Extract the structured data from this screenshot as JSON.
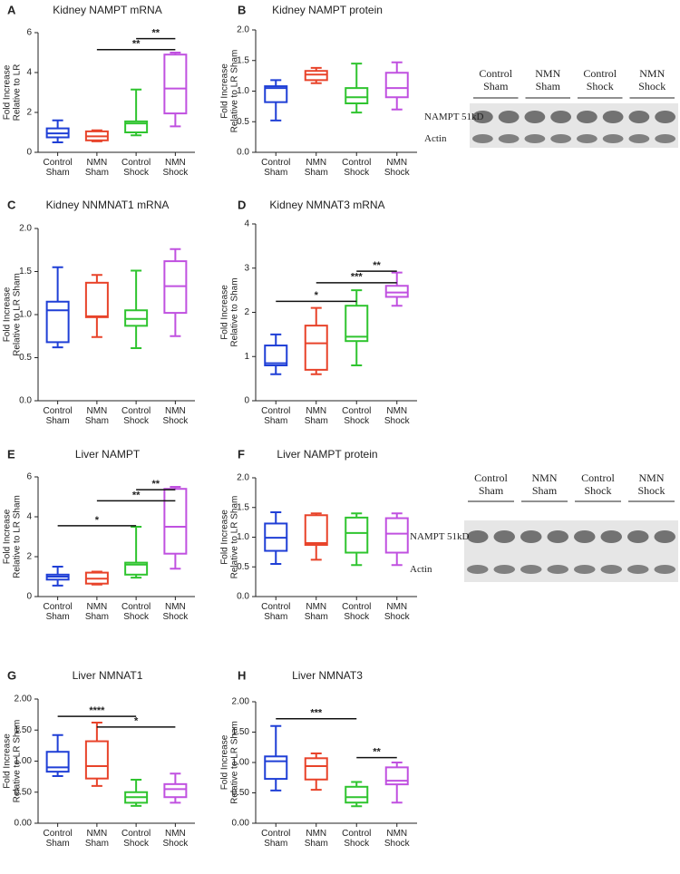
{
  "chart_data": [
    {
      "type": "box",
      "panel_label": "A",
      "title": "Kidney NAMPT mRNA",
      "ylabel": [
        "Fold Increase",
        "Relative to LR"
      ],
      "categories": [
        "Control Sham",
        "NMN Sham",
        "Control Shock",
        "NMN Shock"
      ],
      "colors": [
        "#1f3fd6",
        "#e8432a",
        "#2fc42f",
        "#c051e0"
      ],
      "ylim": [
        0,
        6
      ],
      "yticks": [
        0,
        2,
        4,
        6
      ],
      "values": [
        {
          "min": 0.5,
          "q1": 0.75,
          "median": 0.95,
          "q3": 1.2,
          "max": 1.6
        },
        {
          "min": 0.55,
          "q1": 0.6,
          "median": 0.8,
          "q3": 1.05,
          "max": 1.1
        },
        {
          "min": 0.85,
          "q1": 1.0,
          "median": 1.45,
          "q3": 1.55,
          "max": 3.15
        },
        {
          "min": 1.3,
          "q1": 1.95,
          "median": 3.2,
          "q3": 4.9,
          "max": 5.0
        }
      ],
      "annotations": [
        {
          "label": "**",
          "y": 5.7,
          "span": [
            2,
            3
          ]
        },
        {
          "label": "**",
          "y": 5.15,
          "span": [
            1,
            3
          ]
        }
      ]
    },
    {
      "type": "box",
      "panel_label": "B",
      "title": "Kidney NAMPT protein",
      "ylabel": [
        "Fold Increase",
        "Relative to LR Sham"
      ],
      "categories": [
        "Control Sham",
        "NMN Sham",
        "Control Shock",
        "NMN Shock"
      ],
      "colors": [
        "#1f3fd6",
        "#e8432a",
        "#2fc42f",
        "#c051e0"
      ],
      "ylim": [
        0,
        2
      ],
      "yticks": [
        {
          "value": 0,
          "label": "0.0"
        },
        {
          "value": 0.5,
          "label": "0.5"
        },
        {
          "value": 1,
          "label": "1.0"
        },
        {
          "value": 1.5,
          "label": "1.5"
        },
        {
          "value": 2,
          "label": "2.0"
        }
      ],
      "values": [
        {
          "min": 0.52,
          "q1": 0.82,
          "median": 1.05,
          "q3": 1.08,
          "max": 1.18
        },
        {
          "min": 1.13,
          "q1": 1.18,
          "median": 1.27,
          "q3": 1.33,
          "max": 1.38
        },
        {
          "min": 0.65,
          "q1": 0.8,
          "median": 0.9,
          "q3": 1.05,
          "max": 1.45
        },
        {
          "min": 0.7,
          "q1": 0.9,
          "median": 1.05,
          "q3": 1.3,
          "max": 1.47
        }
      ],
      "annotations": []
    },
    {
      "type": "box",
      "panel_label": "C",
      "title": "Kidney NNMNAT1 mRNA",
      "ylabel": [
        "Fold Increase",
        "Relative to LR Sham"
      ],
      "categories": [
        "Control Sham",
        "NMN Sham",
        "Control Shock",
        "NMN Shock"
      ],
      "colors": [
        "#1f3fd6",
        "#e8432a",
        "#2fc42f",
        "#c051e0"
      ],
      "ylim": [
        0,
        2
      ],
      "yticks": [
        {
          "value": 0,
          "label": "0.0"
        },
        {
          "value": 0.5,
          "label": "0.5"
        },
        {
          "value": 1,
          "label": "1.0"
        },
        {
          "value": 1.5,
          "label": "1.5"
        },
        {
          "value": 2,
          "label": "2.0"
        }
      ],
      "values": [
        {
          "min": 0.62,
          "q1": 0.68,
          "median": 1.05,
          "q3": 1.15,
          "max": 1.55
        },
        {
          "min": 0.74,
          "q1": 0.97,
          "median": 0.98,
          "q3": 1.37,
          "max": 1.46
        },
        {
          "min": 0.61,
          "q1": 0.87,
          "median": 0.95,
          "q3": 1.05,
          "max": 1.51
        },
        {
          "min": 0.75,
          "q1": 1.02,
          "median": 1.33,
          "q3": 1.62,
          "max": 1.76
        }
      ],
      "annotations": []
    },
    {
      "type": "box",
      "panel_label": "D",
      "title": "Kidney NMNAT3 mRNA",
      "ylabel": [
        "Fold Increase",
        "Relative to Sham"
      ],
      "categories": [
        "Control Sham",
        "NMN Sham",
        "Control Shock",
        "NMN Shock"
      ],
      "colors": [
        "#1f3fd6",
        "#e8432a",
        "#2fc42f",
        "#c051e0"
      ],
      "ylim": [
        0,
        4
      ],
      "yticks": [
        0,
        1,
        2,
        3,
        4
      ],
      "values": [
        {
          "min": 0.6,
          "q1": 0.8,
          "median": 0.85,
          "q3": 1.25,
          "max": 1.5
        },
        {
          "min": 0.6,
          "q1": 0.7,
          "median": 1.3,
          "q3": 1.7,
          "max": 2.1
        },
        {
          "min": 0.8,
          "q1": 1.35,
          "median": 1.45,
          "q3": 2.15,
          "max": 2.5
        },
        {
          "min": 2.15,
          "q1": 2.35,
          "median": 2.45,
          "q3": 2.6,
          "max": 2.9
        }
      ],
      "annotations": [
        {
          "label": "*",
          "y": 2.25,
          "span": [
            0,
            2
          ]
        },
        {
          "label": "***",
          "y": 2.67,
          "span": [
            1,
            3
          ]
        },
        {
          "label": "**",
          "y": 2.93,
          "span": [
            2,
            3
          ]
        }
      ]
    },
    {
      "type": "box",
      "panel_label": "E",
      "title": "Liver NAMPT",
      "ylabel": [
        "Fold Increase",
        "Relative to LR Sham"
      ],
      "categories": [
        "Control Sham",
        "NMN Sham",
        "Control Shock",
        "NMN Shock"
      ],
      "colors": [
        "#1f3fd6",
        "#e8432a",
        "#2fc42f",
        "#c051e0"
      ],
      "ylim": [
        0,
        6
      ],
      "yticks": [
        0,
        2,
        4,
        6
      ],
      "values": [
        {
          "min": 0.55,
          "q1": 0.85,
          "median": 1.0,
          "q3": 1.1,
          "max": 1.5
        },
        {
          "min": 0.6,
          "q1": 0.65,
          "median": 0.9,
          "q3": 1.2,
          "max": 1.25
        },
        {
          "min": 0.95,
          "q1": 1.1,
          "median": 1.6,
          "q3": 1.7,
          "max": 3.5
        },
        {
          "min": 1.4,
          "q1": 2.15,
          "median": 3.5,
          "q3": 5.4,
          "max": 5.5
        }
      ],
      "annotations": [
        {
          "label": "*",
          "y": 3.55,
          "span": [
            0,
            2
          ]
        },
        {
          "label": "**",
          "y": 4.8,
          "span": [
            1,
            3
          ]
        },
        {
          "label": "**",
          "y": 5.36,
          "span": [
            2,
            3
          ]
        }
      ]
    },
    {
      "type": "box",
      "panel_label": "F",
      "title": "Liver NAMPT protein",
      "ylabel": [
        "Fold Increase",
        "Relative to LR Sham"
      ],
      "categories": [
        "Control Sham",
        "NMN Sham",
        "Control Shock",
        "NMN Shock"
      ],
      "colors": [
        "#1f3fd6",
        "#e8432a",
        "#2fc42f",
        "#c051e0"
      ],
      "ylim": [
        0,
        2
      ],
      "yticks": [
        {
          "value": 0,
          "label": "0.0"
        },
        {
          "value": 0.5,
          "label": "0.5"
        },
        {
          "value": 1,
          "label": "1.0"
        },
        {
          "value": 1.5,
          "label": "1.5"
        },
        {
          "value": 2,
          "label": "2.0"
        }
      ],
      "values": [
        {
          "min": 0.55,
          "q1": 0.77,
          "median": 0.99,
          "q3": 1.23,
          "max": 1.42
        },
        {
          "min": 0.62,
          "q1": 0.87,
          "median": 0.9,
          "q3": 1.37,
          "max": 1.4
        },
        {
          "min": 0.53,
          "q1": 0.74,
          "median": 1.07,
          "q3": 1.33,
          "max": 1.4
        },
        {
          "min": 0.53,
          "q1": 0.74,
          "median": 1.06,
          "q3": 1.32,
          "max": 1.4
        }
      ],
      "annotations": []
    },
    {
      "type": "box",
      "panel_label": "G",
      "title": "Liver NMNAT1",
      "ylabel": [
        "Fold Increase",
        "Relative to LR Sham"
      ],
      "categories": [
        "Control Sham",
        "NMN Sham",
        "Control Shock",
        "NMN Shock"
      ],
      "colors": [
        "#1f3fd6",
        "#e8432a",
        "#2fc42f",
        "#c051e0"
      ],
      "ylim": [
        0,
        2
      ],
      "yticks": [
        {
          "value": 0,
          "label": "0.00"
        },
        {
          "value": 0.5,
          "label": "0.50"
        },
        {
          "value": 1,
          "label": "1.00"
        },
        {
          "value": 1.5,
          "label": "1.50"
        },
        {
          "value": 2,
          "label": "2.00"
        }
      ],
      "values": [
        {
          "min": 0.76,
          "q1": 0.83,
          "median": 0.9,
          "q3": 1.15,
          "max": 1.42
        },
        {
          "min": 0.6,
          "q1": 0.72,
          "median": 0.92,
          "q3": 1.32,
          "max": 1.62
        },
        {
          "min": 0.28,
          "q1": 0.33,
          "median": 0.42,
          "q3": 0.5,
          "max": 0.7
        },
        {
          "min": 0.33,
          "q1": 0.42,
          "median": 0.55,
          "q3": 0.63,
          "max": 0.8
        }
      ],
      "annotations": [
        {
          "label": "****",
          "y": 1.72,
          "span": [
            0,
            2
          ]
        },
        {
          "label": "*",
          "y": 1.55,
          "span": [
            1,
            3
          ]
        }
      ]
    },
    {
      "type": "box",
      "panel_label": "H",
      "title": "Liver NMNAT3",
      "ylabel": [
        "Fold Increase",
        "Relative to LR Sham"
      ],
      "categories": [
        "Control Sham",
        "NMN Sham",
        "Control Shock",
        "NMN Shock"
      ],
      "colors": [
        "#1f3fd6",
        "#e8432a",
        "#2fc42f",
        "#c051e0"
      ],
      "ylim": [
        0,
        2
      ],
      "yticks": [
        {
          "value": 0,
          "label": "0.00"
        },
        {
          "value": 0.5,
          "label": "0.50"
        },
        {
          "value": 1,
          "label": "1.00"
        },
        {
          "value": 1.5,
          "label": "1.50"
        },
        {
          "value": 2,
          "label": "2.00"
        }
      ],
      "values": [
        {
          "min": 0.54,
          "q1": 0.73,
          "median": 1.02,
          "q3": 1.1,
          "max": 1.6
        },
        {
          "min": 0.55,
          "q1": 0.72,
          "median": 0.94,
          "q3": 1.07,
          "max": 1.15
        },
        {
          "min": 0.28,
          "q1": 0.34,
          "median": 0.43,
          "q3": 0.6,
          "max": 0.68
        },
        {
          "min": 0.34,
          "q1": 0.64,
          "median": 0.7,
          "q3": 0.92,
          "max": 1.0
        }
      ],
      "annotations": [
        {
          "label": "***",
          "y": 1.72,
          "span": [
            0,
            2
          ]
        },
        {
          "label": "**",
          "y": 1.08,
          "span": [
            2,
            3
          ]
        }
      ]
    }
  ],
  "blots": [
    {
      "lanes": [
        "Control Sham",
        "NMN Sham",
        "Control Shock",
        "NMN Shock"
      ],
      "rows": [
        "NAMPT 51kD",
        "Actin"
      ]
    },
    {
      "lanes": [
        "Control Sham",
        "NMN Sham",
        "Control Shock",
        "NMN Shock"
      ],
      "rows": [
        "NAMPT 51kD",
        "Actin"
      ]
    }
  ]
}
